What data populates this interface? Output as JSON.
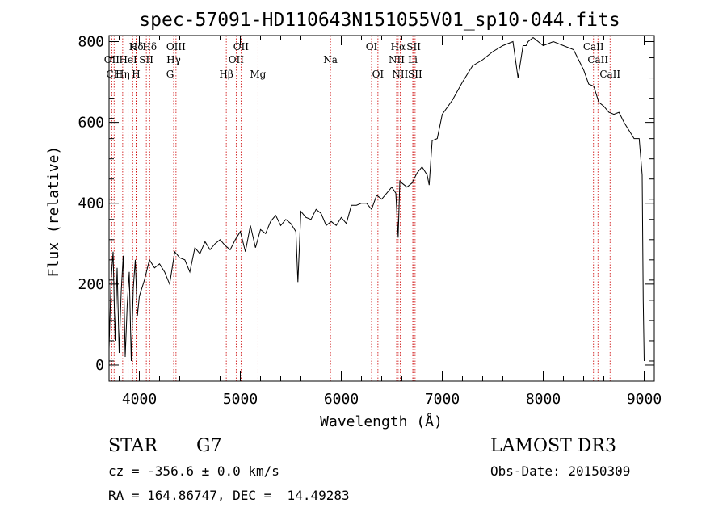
{
  "chart_data": {
    "type": "line",
    "title": "spec-57091-HD110643N151055V01_sp10-044.fits",
    "xlabel": "Wavelength (Å)",
    "ylabel": "Flux (relative)",
    "xlim": [
      3700,
      9100
    ],
    "ylim": [
      -40,
      815
    ],
    "xticks": [
      4000,
      5000,
      6000,
      7000,
      8000,
      9000
    ],
    "yticks": [
      0,
      200,
      400,
      600,
      800
    ],
    "series": [
      {
        "name": "flux",
        "x": [
          3700,
          3720,
          3740,
          3760,
          3780,
          3800,
          3820,
          3840,
          3860,
          3880,
          3900,
          3920,
          3940,
          3960,
          3980,
          4000,
          4050,
          4100,
          4150,
          4200,
          4250,
          4300,
          4350,
          4400,
          4450,
          4500,
          4550,
          4600,
          4650,
          4700,
          4750,
          4800,
          4850,
          4900,
          4950,
          5000,
          5050,
          5100,
          5150,
          5200,
          5250,
          5300,
          5350,
          5400,
          5450,
          5500,
          5550,
          5570,
          5600,
          5650,
          5700,
          5750,
          5800,
          5850,
          5900,
          5950,
          6000,
          6050,
          6100,
          6150,
          6200,
          6250,
          6300,
          6350,
          6400,
          6450,
          6500,
          6540,
          6563,
          6580,
          6600,
          6650,
          6700,
          6750,
          6800,
          6850,
          6870,
          6900,
          6950,
          7000,
          7100,
          7200,
          7300,
          7400,
          7500,
          7600,
          7700,
          7750,
          7800,
          7830,
          7850,
          7900,
          8000,
          8100,
          8200,
          8300,
          8400,
          8450,
          8500,
          8550,
          8600,
          8650,
          8700,
          8750,
          8800,
          8850,
          8900,
          8950,
          8980,
          8990,
          9000
        ],
        "y": [
          40,
          210,
          280,
          60,
          240,
          30,
          180,
          270,
          20,
          150,
          230,
          10,
          190,
          260,
          120,
          170,
          210,
          260,
          240,
          250,
          230,
          200,
          280,
          265,
          260,
          230,
          290,
          275,
          305,
          285,
          300,
          310,
          295,
          285,
          310,
          330,
          280,
          345,
          290,
          335,
          325,
          355,
          370,
          345,
          360,
          350,
          330,
          205,
          380,
          365,
          360,
          385,
          375,
          345,
          355,
          345,
          365,
          350,
          395,
          395,
          400,
          400,
          385,
          420,
          410,
          425,
          440,
          425,
          315,
          455,
          450,
          440,
          450,
          475,
          490,
          470,
          445,
          555,
          560,
          620,
          655,
          700,
          740,
          755,
          775,
          790,
          800,
          710,
          790,
          790,
          800,
          810,
          790,
          800,
          790,
          780,
          730,
          695,
          690,
          650,
          640,
          625,
          620,
          625,
          600,
          580,
          560,
          560,
          470,
          160,
          10
        ]
      }
    ],
    "lines": [
      {
        "name": "Hδ",
        "x": 3970,
        "row": 1
      },
      {
        "name": "K",
        "x": 3934,
        "row": 1
      },
      {
        "name": "Hδ",
        "x": 4102,
        "row": 1
      },
      {
        "name": "OIII",
        "x": 4363,
        "row": 1
      },
      {
        "name": "OII",
        "x": 5007,
        "row": 1
      },
      {
        "name": "OI",
        "x": 6300,
        "row": 1
      },
      {
        "name": "Hα",
        "x": 6563,
        "row": 1
      },
      {
        "name": "SII",
        "x": 6717,
        "row": 1
      },
      {
        "name": "CaII",
        "x": 8498,
        "row": 1
      },
      {
        "name": "OII",
        "x": 3727,
        "row": 2
      },
      {
        "name": "HeI",
        "x": 3889,
        "row": 2
      },
      {
        "name": "SII",
        "x": 4069,
        "row": 2
      },
      {
        "name": "Hγ",
        "x": 4340,
        "row": 2
      },
      {
        "name": "OII",
        "x": 4959,
        "row": 2
      },
      {
        "name": "Na",
        "x": 5893,
        "row": 2
      },
      {
        "name": "NII",
        "x": 6548,
        "row": 2
      },
      {
        "name": "Li",
        "x": 6708,
        "row": 2
      },
      {
        "name": "CaII",
        "x": 8542,
        "row": 2
      },
      {
        "name": "CH",
        "x": 3750,
        "row": 3
      },
      {
        "name": "Hη",
        "x": 3835,
        "row": 3
      },
      {
        "name": "H",
        "x": 3968,
        "row": 3
      },
      {
        "name": "G",
        "x": 4304,
        "row": 3
      },
      {
        "name": "Hβ",
        "x": 4861,
        "row": 3
      },
      {
        "name": "Mg",
        "x": 5175,
        "row": 3
      },
      {
        "name": "OI",
        "x": 6363,
        "row": 3
      },
      {
        "name": "NII",
        "x": 6583,
        "row": 3
      },
      {
        "name": "SII",
        "x": 6731,
        "row": 3
      },
      {
        "name": "CaII",
        "x": 8662,
        "row": 3
      }
    ]
  },
  "info": {
    "object_type": "STAR",
    "subclass": "G7",
    "survey": "LAMOST DR3",
    "cz": "cz = -356.6 ± 0.0 km/s",
    "obs_date": "Obs-Date: 20150309",
    "coords": "RA = 164.86747, DEC =  14.49283"
  }
}
